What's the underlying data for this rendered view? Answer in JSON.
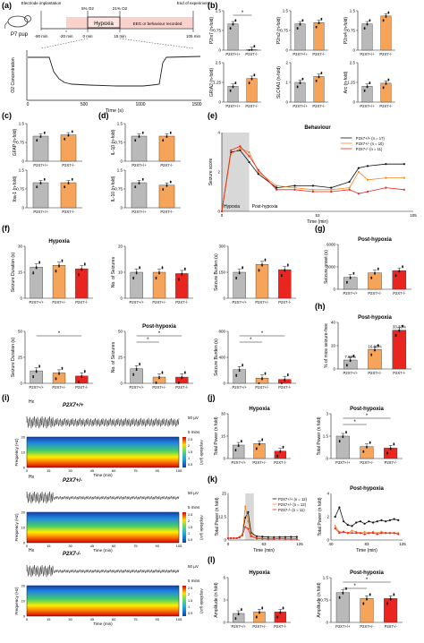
{
  "panel_letters": [
    "(a)",
    "(b)",
    "(c)",
    "(d)",
    "(e)",
    "(f)",
    "(g)",
    "(h)",
    "(i)",
    "(j)",
    "(k)",
    "(l)"
  ],
  "genotypes": [
    "P2X7+/+",
    "P2X7+/-",
    "P2X7-/-"
  ],
  "colors": {
    "wt": "#b9b9b9",
    "het": "#f5a45a",
    "ko": "#e8261f",
    "hypoxia_bar": "#f9d2cc",
    "gray": "#9a9a9a"
  },
  "panel_a": {
    "timeline": {
      "pup": "P7 pup",
      "events": [
        "Electrode implantation",
        "5% O2",
        "21% O2",
        "End of experiment"
      ],
      "hypoxia": "Hypoxia",
      "recording": "EEG or behaviour recorded",
      "ticks": [
        "-90 min",
        "-20 min",
        "0 min",
        "15 min",
        "105 min"
      ]
    },
    "o2_chart": {
      "ylabel": "O2 Concentration",
      "xlabel": "Time (s)",
      "xticks": [
        "0",
        "500",
        "1000",
        "1500"
      ]
    }
  },
  "chart_data": [
    {
      "id": "b1",
      "type": "bar",
      "ylabel": "P2rx7 (n-fold)",
      "categories": [
        "P2X7+/+",
        "P2X7-/-"
      ],
      "values": [
        1.0,
        0.02
      ],
      "ylim": [
        0,
        1.5
      ],
      "sig": [
        "*"
      ]
    },
    {
      "id": "b2",
      "type": "bar",
      "ylabel": "P2rx2 (n-fold)",
      "categories": [
        "P2X7+/+",
        "P2X7-/-"
      ],
      "values": [
        1.0,
        1.05
      ],
      "ylim": [
        0,
        1.5
      ]
    },
    {
      "id": "b3",
      "type": "bar",
      "ylabel": "P2rx4 (n-fold)",
      "categories": [
        "P2X7+/+",
        "P2X7-/-"
      ],
      "values": [
        1.0,
        1.3
      ],
      "ylim": [
        0,
        1.5
      ]
    },
    {
      "id": "b4",
      "type": "bar",
      "ylabel": "GRIA2 (n-fold)",
      "categories": [
        "P2X7+/+",
        "P2X7-/-"
      ],
      "values": [
        1.0,
        1.5
      ],
      "ylim": [
        0,
        2.5
      ]
    },
    {
      "id": "b5",
      "type": "bar",
      "ylabel": "SLC4A1 (n-fold)",
      "categories": [
        "P2X7+/+",
        "P2X7-/-"
      ],
      "values": [
        1.0,
        1.3
      ],
      "ylim": [
        0,
        2
      ]
    },
    {
      "id": "b6",
      "type": "bar",
      "ylabel": "Arc (n-fold)",
      "categories": [
        "P2X7+/+",
        "P2X7-/-"
      ],
      "values": [
        1.0,
        1.2
      ],
      "ylim": [
        0,
        2.5
      ]
    },
    {
      "id": "c1",
      "type": "bar",
      "ylabel": "GFAP (n-fold)",
      "categories": [
        "P2X7+/+",
        "P2X7-/-"
      ],
      "values": [
        1.0,
        1.05
      ],
      "ylim": [
        0,
        1.5
      ]
    },
    {
      "id": "c2",
      "type": "bar",
      "ylabel": "Iba-1 (n-fold)",
      "categories": [
        "P2X7+/+",
        "P2X7-/-"
      ],
      "values": [
        1.0,
        1.0
      ],
      "ylim": [
        0,
        1.5
      ]
    },
    {
      "id": "d1",
      "type": "bar",
      "ylabel": "IL-1β (n-fold)",
      "categories": [
        "P2X7+/+",
        "P2X7-/-"
      ],
      "values": [
        1.0,
        1.0
      ],
      "ylim": [
        0,
        1.5
      ]
    },
    {
      "id": "d2",
      "type": "bar",
      "ylabel": "IL-10 (n-fold)",
      "categories": [
        "P2X7+/+",
        "P2X7-/-"
      ],
      "values": [
        1.0,
        0.9
      ],
      "ylim": [
        0,
        1.5
      ]
    },
    {
      "id": "e",
      "type": "line",
      "title": "Behaviour",
      "ylabel": "Seizure score",
      "xlabel": "Time (min)",
      "x": [
        0,
        5,
        10,
        15,
        20,
        30,
        40,
        50,
        60,
        70,
        75,
        80,
        90,
        100
      ],
      "series": [
        {
          "name": "P2X7+/+ (n = 17)",
          "values": [
            0,
            3.0,
            3.1,
            2.5,
            1.9,
            1.2,
            1.3,
            1.3,
            1.2,
            1.5,
            2.2,
            2.3,
            2.4,
            2.4
          ]
        },
        {
          "name": "P2X7+/- (n = 10)",
          "values": [
            0,
            2.9,
            3.2,
            3.0,
            2.0,
            1.3,
            1.2,
            1.1,
            1.1,
            1.2,
            2.0,
            1.6,
            1.7,
            1.7
          ]
        },
        {
          "name": "P2X7-/- (n = 11)",
          "values": [
            0,
            3.1,
            3.3,
            2.8,
            2.1,
            1.1,
            1.1,
            1.0,
            1.0,
            1.1,
            0.9,
            1.0,
            1.2,
            1.1
          ]
        }
      ],
      "xlim": [
        0,
        105
      ],
      "ylim": [
        0,
        4
      ],
      "shade": [
        0,
        15
      ],
      "shade_labels": [
        "Hypoxia",
        "Post-hypoxia"
      ]
    },
    {
      "id": "f1",
      "type": "bar",
      "title": "Hypoxia",
      "ylabel": "Seizure Duration (s)",
      "categories": [
        "P2X7+/+",
        "P2X7+/-",
        "P2X7-/-"
      ],
      "values": [
        18,
        19,
        17
      ],
      "ylim": [
        0,
        30
      ]
    },
    {
      "id": "f2",
      "type": "bar",
      "ylabel": "No. of Seizures",
      "categories": [
        "P2X7+/+",
        "P2X7+/-",
        "P2X7-/-"
      ],
      "values": [
        10,
        10,
        9.5
      ],
      "ylim": [
        0,
        20
      ]
    },
    {
      "id": "f3",
      "type": "bar",
      "ylabel": "Seizure Burden (s)",
      "categories": [
        "P2X7+/+",
        "P2X7+/-",
        "P2X7-/-"
      ],
      "values": [
        150,
        195,
        165
      ],
      "ylim": [
        0,
        300
      ]
    },
    {
      "id": "f4",
      "type": "bar",
      "ylabel": "Seizure Duration (s)",
      "categories": [
        "P2X7+/+",
        "P2X7+/-",
        "P2X7-/-"
      ],
      "values": [
        12,
        10,
        7
      ],
      "ylim": [
        0,
        50
      ],
      "sig": [
        "*"
      ]
    },
    {
      "id": "f5",
      "type": "bar",
      "title": "Post-hypoxia",
      "ylabel": "No. of Seizures",
      "categories": [
        "P2X7+/+",
        "P2X7+/-",
        "P2X7-/-"
      ],
      "values": [
        14,
        6,
        6
      ],
      "ylim": [
        0,
        50
      ],
      "sig": [
        "*",
        "*"
      ]
    },
    {
      "id": "f6",
      "type": "bar",
      "ylabel": "Seizure Burden (s)",
      "categories": [
        "P2X7+/+",
        "P2X7+/-",
        "P2X7-/-"
      ],
      "values": [
        210,
        80,
        60
      ],
      "ylim": [
        0,
        800
      ],
      "sig": [
        "*",
        "*"
      ]
    },
    {
      "id": "g",
      "type": "bar",
      "title": "Post-hypoxia",
      "ylabel": "Seizure onset (s)",
      "categories": [
        "P2X7+/+",
        "P2X7+/-",
        "P2X7-/-"
      ],
      "values": [
        1600,
        2200,
        2500
      ],
      "ylim": [
        0,
        6000
      ]
    },
    {
      "id": "h",
      "type": "bar",
      "title": "Post-hypoxia",
      "ylabel": "% of mice seizure-free",
      "categories": [
        "P2X7+/+",
        "P2X7+/-",
        "P2X7-/-"
      ],
      "values": [
        7.69,
        16.66,
        33.33
      ],
      "labels": [
        "7.69%",
        "16.66%",
        "33.33%"
      ],
      "ylim": [
        0,
        40
      ]
    },
    {
      "id": "j1",
      "type": "bar",
      "title": "Hypoxia",
      "ylabel": "Total Power (n fold)",
      "categories": [
        "P2X7+/+",
        "P2X7+/-",
        "P2X7-/-"
      ],
      "values": [
        9,
        10,
        5
      ],
      "ylim": [
        0,
        30
      ]
    },
    {
      "id": "j2",
      "type": "bar",
      "title": "Post-hypoxia",
      "ylabel": "Total Power (n fold)",
      "categories": [
        "P2X7+/+",
        "P2X7+/-",
        "P2X7-/-"
      ],
      "values": [
        1.5,
        0.8,
        0.7
      ],
      "ylim": [
        0,
        3
      ],
      "sig": [
        "*",
        "*"
      ]
    },
    {
      "id": "k1",
      "type": "line",
      "ylabel": "Total Power (n fold)",
      "xlabel": "Time (min)",
      "x": [
        0,
        5,
        10,
        15,
        20,
        25,
        30,
        35,
        40,
        50,
        60,
        70,
        80,
        90,
        100,
        110,
        120
      ],
      "series": [
        {
          "name": "P2X7+/+ (n = 12)",
          "values": [
            1,
            1,
            1,
            1,
            1.5,
            3,
            12,
            15,
            4,
            2,
            1.8,
            1.6,
            1.5,
            1.6,
            1.6,
            1.7,
            1.7
          ]
        },
        {
          "name": "P2X7+/- (n = 12)",
          "values": [
            1,
            1,
            1,
            1,
            1.6,
            3,
            18,
            10,
            3,
            1.2,
            0.8,
            0.7,
            0.7,
            0.7,
            0.7,
            0.6,
            0.7
          ]
        },
        {
          "name": "P2X7-/- (n = 11)",
          "values": [
            1,
            1,
            1,
            1,
            1.5,
            2.5,
            7,
            6,
            2,
            0.8,
            0.7,
            0.6,
            0.6,
            0.7,
            0.6,
            0.6,
            0.6
          ]
        }
      ],
      "xlim": [
        0,
        125
      ],
      "ylim": [
        0,
        25
      ],
      "shade": [
        30,
        45
      ]
    },
    {
      "id": "k2",
      "type": "line",
      "title": "Post-hypoxia",
      "ylabel": "Total Power (n fold)",
      "xlabel": "Time (min)",
      "x": [
        45,
        50,
        55,
        60,
        65,
        70,
        75,
        80,
        85,
        90,
        95,
        100,
        105,
        110,
        115,
        120
      ],
      "series": [
        {
          "name": "P2X7+/+",
          "values": [
            2,
            2.8,
            1.6,
            1.3,
            1.2,
            1.5,
            1.6,
            1.4,
            1.6,
            1.5,
            1.6,
            1.7,
            1.6,
            1.7,
            1.8,
            1.7
          ]
        },
        {
          "name": "P2X7+/-",
          "values": [
            1.2,
            0.7,
            0.7,
            0.6,
            0.8,
            0.7,
            0.6,
            0.7,
            0.6,
            0.7,
            0.6,
            0.7,
            0.6,
            0.6,
            0.6,
            0.6
          ]
        },
        {
          "name": "P2X7-/-",
          "values": [
            1.0,
            0.6,
            0.7,
            0.6,
            0.6,
            0.6,
            0.6,
            0.5,
            0.6,
            0.6,
            0.5,
            0.6,
            0.6,
            0.6,
            0.6,
            0.5
          ]
        }
      ],
      "xlim": [
        40,
        125
      ],
      "ylim": [
        0,
        4
      ]
    },
    {
      "id": "l1",
      "type": "bar",
      "title": "Hypoxia",
      "ylabel": "Amplitude (n fold)",
      "categories": [
        "P2X7+/+",
        "P2X7+/-",
        "P2X7-/-"
      ],
      "values": [
        1.2,
        1.4,
        1.4
      ],
      "ylim": [
        0,
        6
      ]
    },
    {
      "id": "l2",
      "type": "bar",
      "title": "Post-hypoxia",
      "ylabel": "Amplitude (n fold)",
      "categories": [
        "P2X7+/+",
        "P2X7+/-",
        "P2X7-/-"
      ],
      "values": [
        1.0,
        0.8,
        0.8
      ],
      "ylim": [
        0,
        1.5
      ],
      "sig": [
        "*",
        "*"
      ]
    }
  ],
  "panel_i": {
    "hx": "Hx",
    "scale_v": "50 µV",
    "scale_t": "5 mins",
    "freq_label": "Frequency (Hz)",
    "amp_label": "Amplitude (µV)",
    "time_label": "Time (min)",
    "xticks": [
      "0",
      "15",
      "30",
      "45",
      "60",
      "75",
      "90",
      "105"
    ],
    "yticks": [
      "0",
      "10",
      "20"
    ],
    "cbar_ticks": [
      "2.5",
      "2",
      "1.5",
      "1",
      "0.5"
    ]
  }
}
